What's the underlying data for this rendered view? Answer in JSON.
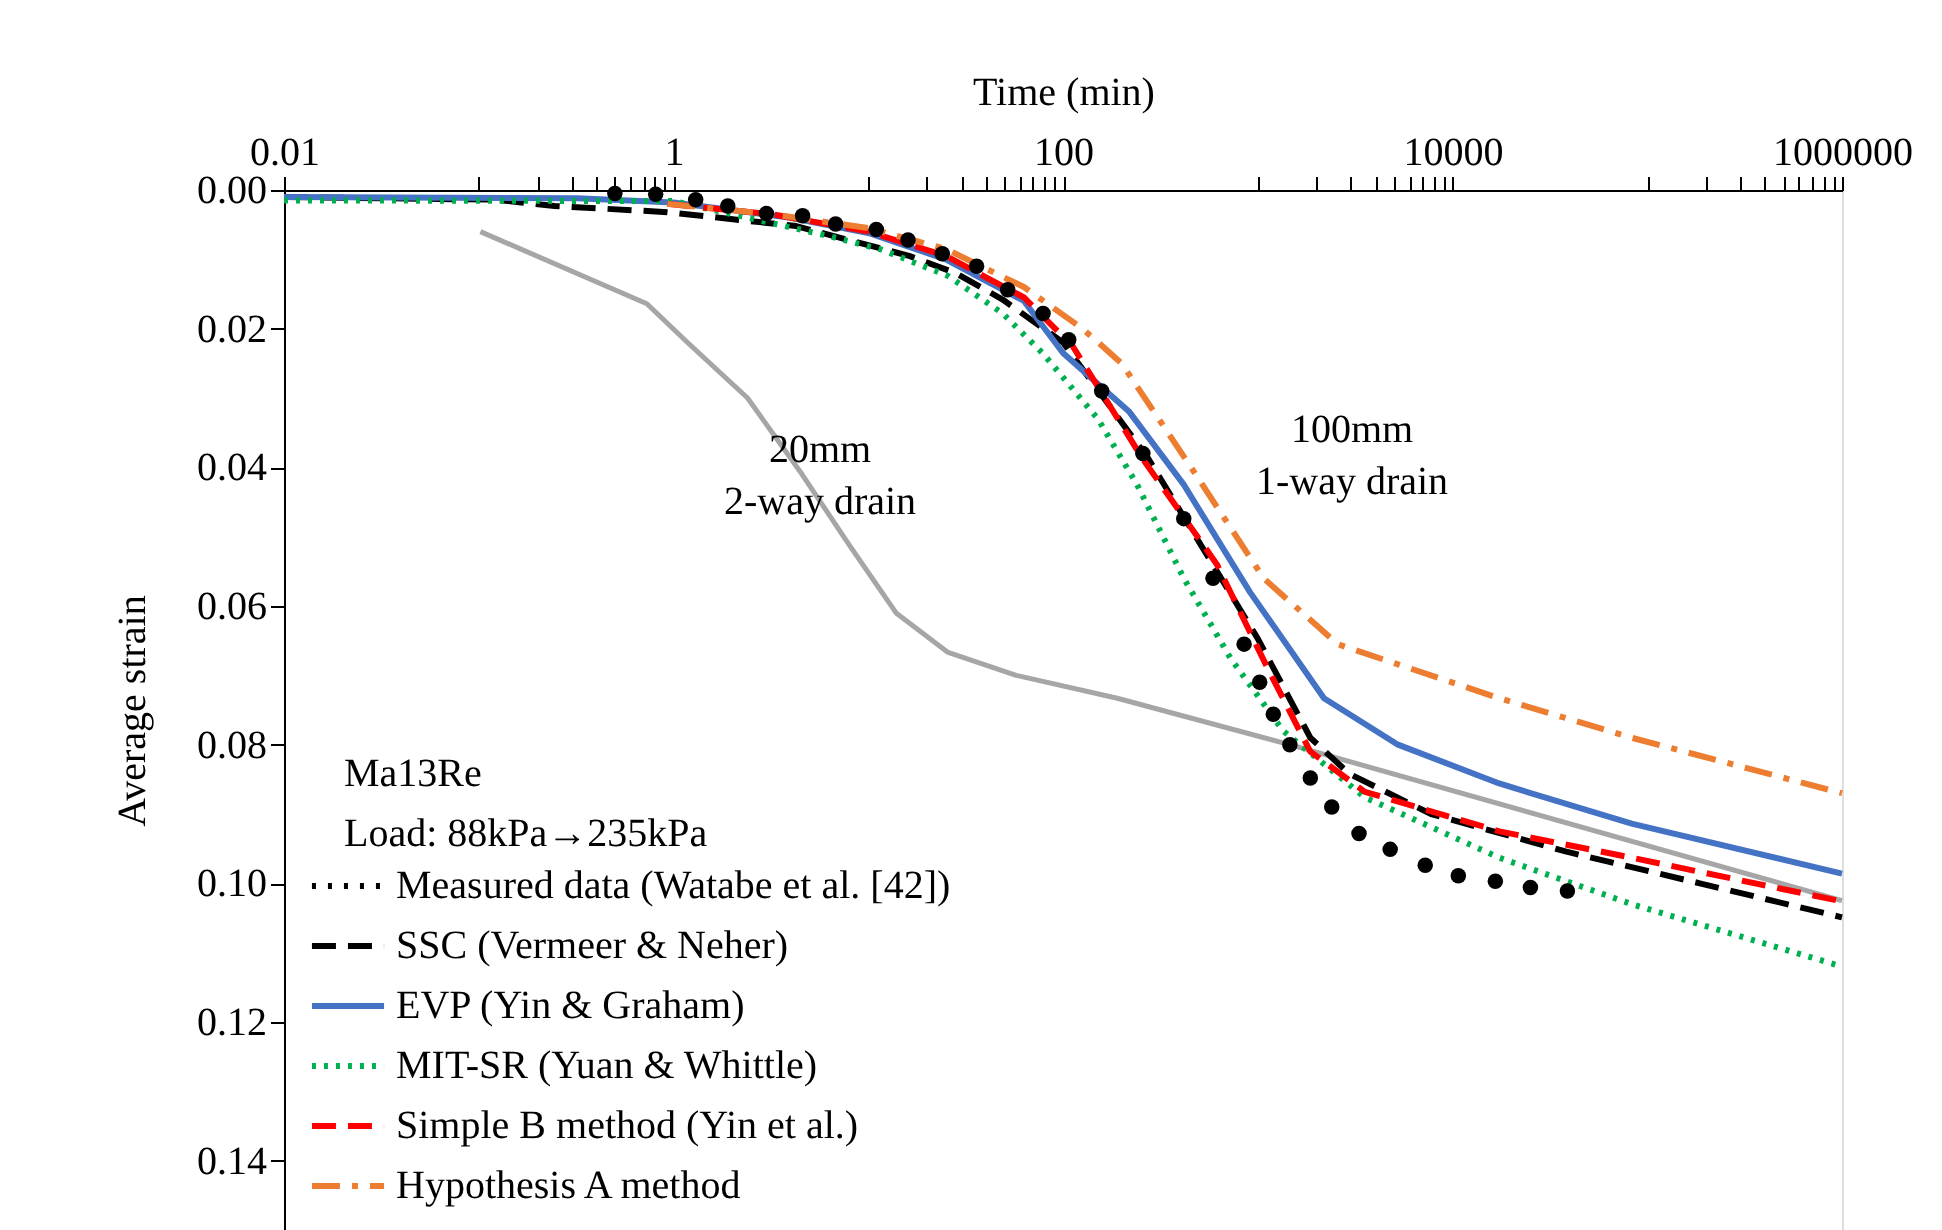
{
  "chart_data": {
    "type": "line",
    "xlabel": "Time (min)",
    "ylabel": "Average strain",
    "log": "x",
    "grid": false,
    "legend": "bottom left",
    "xlim": [
      0.01,
      1000000
    ],
    "ylim": [
      0.15,
      0
    ],
    "xticks": [
      0.01,
      {
        "value": 0.1,
        "label": null
      },
      {
        "value": 0.2,
        "label": null
      },
      {
        "value": 0.3,
        "label": null
      },
      {
        "value": 0.4,
        "label": null
      },
      {
        "value": 0.5,
        "label": null
      },
      {
        "value": 0.6,
        "label": null
      },
      {
        "value": 0.7,
        "label": null
      },
      {
        "value": 0.8,
        "label": null
      },
      {
        "value": 0.9,
        "label": null
      },
      1,
      {
        "value": 10,
        "label": null
      },
      {
        "value": 20,
        "label": null
      },
      {
        "value": 30,
        "label": null
      },
      {
        "value": 40,
        "label": null
      },
      {
        "value": 50,
        "label": null
      },
      {
        "value": 60,
        "label": null
      },
      {
        "value": 70,
        "label": null
      },
      {
        "value": 80,
        "label": null
      },
      {
        "value": 90,
        "label": null
      },
      100,
      {
        "value": 1000,
        "label": null
      },
      {
        "value": 2000,
        "label": null
      },
      {
        "value": 3000,
        "label": null
      },
      {
        "value": 4000,
        "label": null
      },
      {
        "value": 5000,
        "label": null
      },
      {
        "value": 6000,
        "label": null
      },
      {
        "value": 7000,
        "label": null
      },
      {
        "value": 8000,
        "label": null
      },
      {
        "value": 9000,
        "label": null
      },
      10000,
      {
        "value": 100000,
        "label": null
      },
      {
        "value": 200000,
        "label": null
      },
      {
        "value": 300000,
        "label": null
      },
      {
        "value": 400000,
        "label": null
      },
      {
        "value": 500000,
        "label": null
      },
      {
        "value": 600000,
        "label": null
      },
      {
        "value": 700000,
        "label": null
      },
      {
        "value": 800000,
        "label": null
      },
      {
        "value": 900000,
        "label": null
      },
      1000000
    ],
    "yticks": [
      {
        "value": 0,
        "label": "0.00"
      },
      0.02,
      0.04,
      0.06,
      0.08,
      {
        "value": 0.1,
        "label": "0.10"
      },
      0.12,
      0.14
    ],
    "series": [
      {
        "name": "Measured data (Watabe et al. [42])",
        "type": "scatter",
        "marker": "circle",
        "color": "#000000",
        "x": [
          0.5,
          0.81,
          1.3,
          1.9,
          3.0,
          4.6,
          6.8,
          11,
          16,
          24,
          36,
          52,
          79,
          107,
          158,
          257,
          417,
          589,
          851,
          1023,
          1202,
          1462,
          1862,
          2399,
          3311,
          4786,
          7244,
          10715,
          16596,
          25119,
          38905
        ],
        "values": [
          0.0005,
          0.0006,
          0.0014,
          0.0023,
          0.0034,
          0.0037,
          0.0049,
          0.0057,
          0.0072,
          0.0092,
          0.011,
          0.0144,
          0.0178,
          0.0216,
          0.029,
          0.038,
          0.0474,
          0.056,
          0.0655,
          0.071,
          0.0756,
          0.08,
          0.0848,
          0.089,
          0.0928,
          0.0951,
          0.0974,
          0.0989,
          0.0997,
          0.1006,
          0.1011
        ]
      },
      {
        "name": "SSC (Vermeer & Neher)",
        "line_style": "dashed",
        "color": "#000000",
        "x": [
          0.01,
          0.121,
          0.245,
          0.93,
          4.27,
          7.9,
          16.2,
          28.2,
          49,
          100,
          275,
          617,
          1000,
          1862,
          2951,
          7762,
          38019,
          186209,
          1000000
        ],
        "values": [
          0.001,
          0.0014,
          0.0023,
          0.0032,
          0.0052,
          0.0072,
          0.0095,
          0.012,
          0.0158,
          0.022,
          0.0388,
          0.055,
          0.0647,
          0.079,
          0.0842,
          0.09,
          0.0954,
          0.1,
          0.1049
        ]
      },
      {
        "name": "EVP (Yin & Graham)",
        "line_style": "solid",
        "color": "#4472c4",
        "x": [
          0.01,
          0.32,
          1,
          4,
          10,
          25,
          63,
          100,
          219,
          417,
          912,
          2188,
          5248,
          17378,
          83176,
          1000000
        ],
        "values": [
          0.001,
          0.0012,
          0.0018,
          0.004,
          0.0062,
          0.01,
          0.016,
          0.0235,
          0.032,
          0.0425,
          0.058,
          0.0733,
          0.08,
          0.0856,
          0.0914,
          0.0986
        ]
      },
      {
        "name": "MIT-SR (Yuan & Whittle)",
        "line_style": "dotted",
        "color": "#00b050",
        "x": [
          0.01,
          1,
          6.2,
          11.7,
          25.7,
          49,
          79,
          151,
          240,
          417,
          724,
          1349,
          3548,
          17378,
          83176,
          1000000
        ],
        "values": [
          0.0015,
          0.0016,
          0.0066,
          0.0086,
          0.0124,
          0.0178,
          0.0236,
          0.033,
          0.0425,
          0.056,
          0.0675,
          0.078,
          0.0876,
          0.0963,
          0.103,
          0.112
        ]
      },
      {
        "name": "Simple B method (Yin et al.)",
        "line_style": "dashed",
        "color": "#ff0000",
        "x": [
          0.93,
          3.2,
          10,
          25,
          63,
          112,
          257,
          617,
          1148,
          1862,
          3548,
          17378,
          83176,
          1000000
        ],
        "values": [
          0.002,
          0.0035,
          0.006,
          0.0095,
          0.0155,
          0.0225,
          0.0388,
          0.054,
          0.0695,
          0.081,
          0.0868,
          0.0925,
          0.0963,
          0.1026
        ]
      },
      {
        "name": "Hypothesis A method",
        "line_style": "dashdot",
        "color": "#ed7d31",
        "x": [
          0.93,
          3.2,
          10,
          25,
          63,
          126,
          200,
          447,
          1072,
          2570,
          17378,
          83176,
          1000000
        ],
        "values": [
          0.002,
          0.0035,
          0.0055,
          0.0085,
          0.014,
          0.02,
          0.025,
          0.0397,
          0.056,
          0.0655,
          0.0733,
          0.079,
          0.087
        ]
      },
      {
        "line_style": "solid",
        "color": "#a6a6a6",
        "x": [
          0.102,
          0.73,
          1.18,
          2.4,
          4.57,
          7.9,
          13.9,
          25.7,
          57.5,
          190,
          1460,
          1000000
        ],
        "values": [
          0.006,
          0.0164,
          0.022,
          0.03,
          0.041,
          0.051,
          0.061,
          0.0667,
          0.07,
          0.0733,
          0.08,
          0.1025
        ]
      }
    ],
    "annotations": [
      "20mm\n2-way drain",
      "100mm\n1-way drain",
      "Ma13Re",
      "Load: 88kPa→235kPa"
    ]
  }
}
